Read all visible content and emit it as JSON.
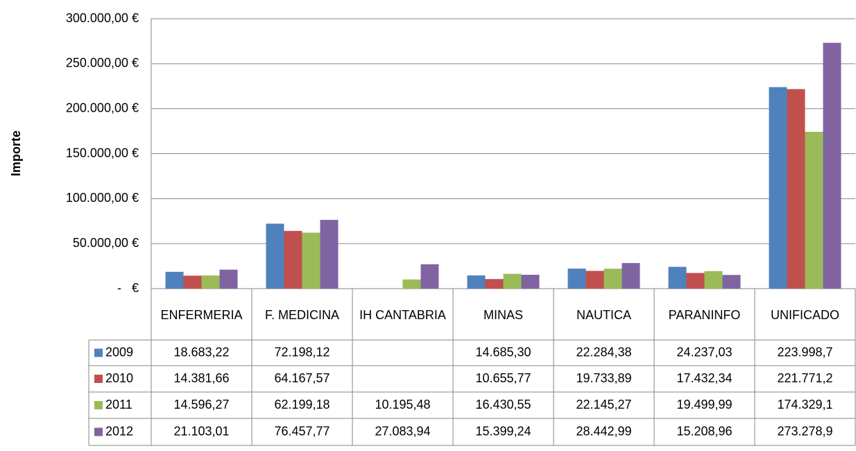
{
  "chart_data": {
    "type": "bar",
    "y_axis_label": "Importe",
    "categories": [
      "ENFERMERIA",
      "F. MEDICINA",
      "IH CANTABRIA",
      "MINAS",
      "NAUTICA",
      "PARANINFO",
      "UNIFICADO"
    ],
    "series": [
      {
        "name": "2009",
        "color": "#4f81bd",
        "values": [
          18683.22,
          72198.12,
          null,
          14685.3,
          22284.38,
          24237.03,
          223998.7
        ],
        "value_labels": [
          "18.683,22",
          "72.198,12",
          null,
          "14.685,30",
          "22.284,38",
          "24.237,03",
          "223.998,7"
        ]
      },
      {
        "name": "2010",
        "color": "#c0504d",
        "values": [
          14381.66,
          64167.57,
          null,
          10655.77,
          19733.89,
          17432.34,
          221771.2
        ],
        "value_labels": [
          "14.381,66",
          "64.167,57",
          null,
          "10.655,77",
          "19.733,89",
          "17.432,34",
          "221.771,2"
        ]
      },
      {
        "name": "2011",
        "color": "#9bbb59",
        "values": [
          14596.27,
          62199.18,
          10195.48,
          16430.55,
          22145.27,
          19499.99,
          174329.1
        ],
        "value_labels": [
          "14.596,27",
          "62.199,18",
          "10.195,48",
          "16.430,55",
          "22.145,27",
          "19.499,99",
          "174.329,1"
        ]
      },
      {
        "name": "2012",
        "color": "#8064a2",
        "values": [
          21103.01,
          76457.77,
          27083.94,
          15399.24,
          28442.99,
          15208.96,
          273278.9
        ],
        "value_labels": [
          "21.103,01",
          "76.457,77",
          "27.083,94",
          "15.399,24",
          "28.442,99",
          "15.208,96",
          "273.278,9"
        ]
      }
    ],
    "ylim": [
      0,
      300000
    ],
    "yticks": [
      {
        "value": 0,
        "label": "-   €"
      },
      {
        "value": 50000,
        "label": "50.000,00 €"
      },
      {
        "value": 100000,
        "label": "100.000,00 €"
      },
      {
        "value": 150000,
        "label": "150.000,00 €"
      },
      {
        "value": 200000,
        "label": "200.000,00 €"
      },
      {
        "value": 250000,
        "label": "250.000,00 €"
      },
      {
        "value": 300000,
        "label": "300.000,00 €"
      }
    ],
    "grid": true
  }
}
